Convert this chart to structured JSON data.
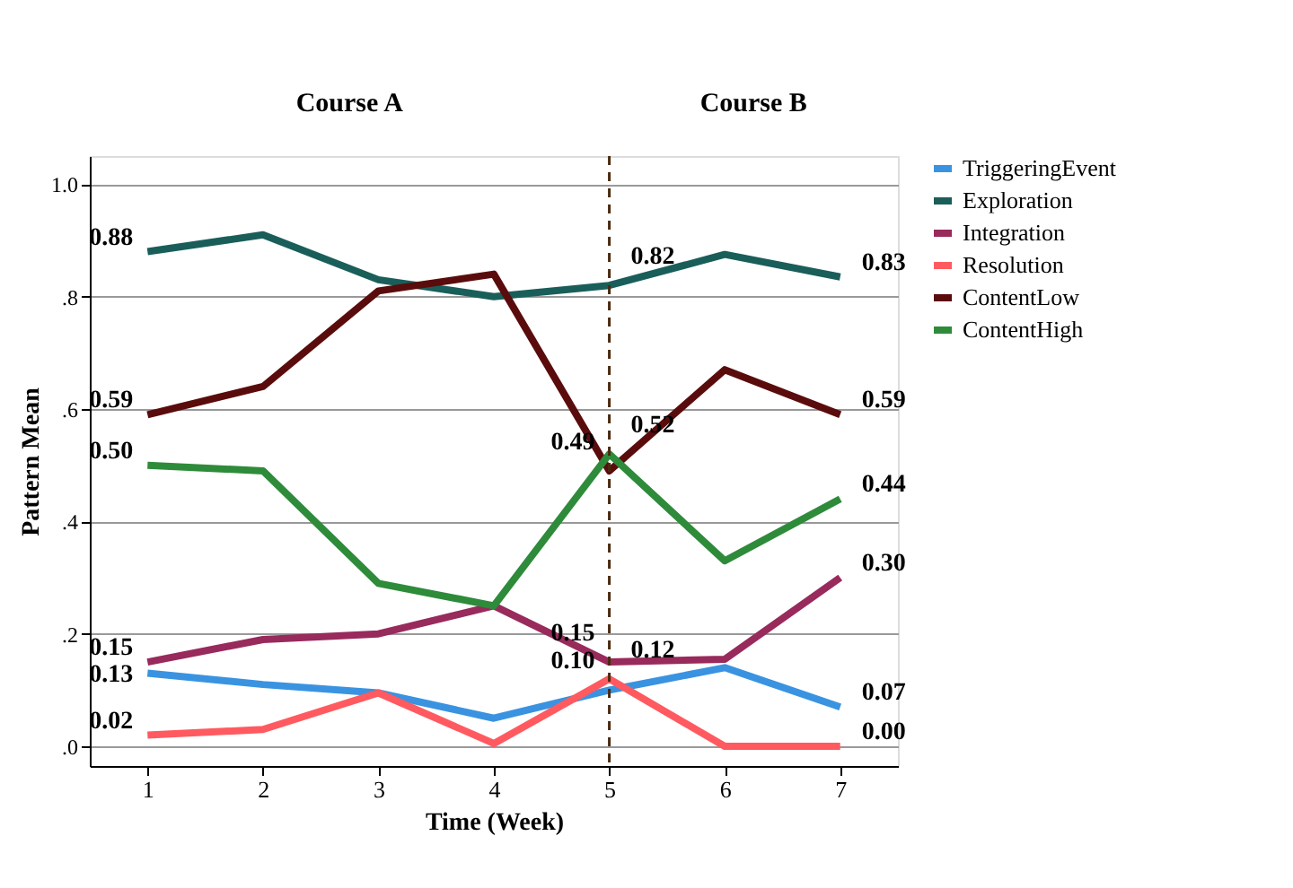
{
  "chart_data": {
    "type": "line",
    "xlabel": "Time (Week)",
    "ylabel": "Pattern Mean",
    "x": [
      1,
      2,
      3,
      4,
      5,
      6,
      7
    ],
    "xlim": [
      0.5,
      7.5
    ],
    "xticks": [
      1,
      2,
      3,
      4,
      5,
      6,
      7
    ],
    "ylim": [
      -0.035,
      1.05
    ],
    "yticks": [
      {
        "value": 0,
        "label": ".0"
      },
      {
        "value": 0.2,
        "label": ".2"
      },
      {
        "value": 0.4,
        "label": ".4"
      },
      {
        "value": 0.6,
        "label": ".6"
      },
      {
        "value": 0.8,
        "label": ".8"
      },
      {
        "value": 1,
        "label": "1.0"
      }
    ],
    "grid": "y",
    "legend": "right",
    "marker": "none",
    "line_style": "solid",
    "series": [
      {
        "name": "TriggeringEvent",
        "color": "#3a93e0",
        "values": [
          0.13,
          0.11,
          0.095,
          0.05,
          0.1,
          0.14,
          0.07
        ],
        "value_labels": [
          "0.13",
          null,
          null,
          null,
          "0.10",
          null,
          "0.07"
        ]
      },
      {
        "name": "Exploration",
        "color": "#1a5e5a",
        "values": [
          0.88,
          0.91,
          0.83,
          0.8,
          0.82,
          0.875,
          0.835
        ],
        "value_labels": [
          "0.88",
          null,
          null,
          null,
          "0.82",
          null,
          "0.83"
        ]
      },
      {
        "name": "Integration",
        "color": "#982a5c",
        "values": [
          0.15,
          0.19,
          0.2,
          0.25,
          0.15,
          0.155,
          0.3
        ],
        "value_labels": [
          "0.15",
          null,
          null,
          null,
          "0.15",
          null,
          "0.30"
        ]
      },
      {
        "name": "Resolution",
        "color": "#ff5a60",
        "values": [
          0.02,
          0.03,
          0.095,
          0.005,
          0.12,
          0.0,
          0.0
        ],
        "value_labels": [
          "0.02",
          null,
          null,
          null,
          "0.12",
          null,
          "0.00"
        ]
      },
      {
        "name": "ContentLow",
        "color": "#5a0c0c",
        "values": [
          0.59,
          0.64,
          0.81,
          0.84,
          0.49,
          0.67,
          0.59
        ],
        "value_labels": [
          "0.59",
          null,
          null,
          null,
          "0.49",
          null,
          "0.59"
        ]
      },
      {
        "name": "ContentHigh",
        "color": "#2e8b3a",
        "values": [
          0.5,
          0.49,
          0.29,
          0.25,
          0.52,
          0.33,
          0.44
        ],
        "value_labels": [
          "0.50",
          null,
          null,
          null,
          "0.52",
          null,
          "0.44"
        ]
      }
    ],
    "ref_lines": [
      {
        "axis": "x",
        "value": 5,
        "color": "#4a2a10",
        "line_style": "dashed"
      }
    ],
    "annotations": [
      "Course A",
      "Course B"
    ]
  }
}
